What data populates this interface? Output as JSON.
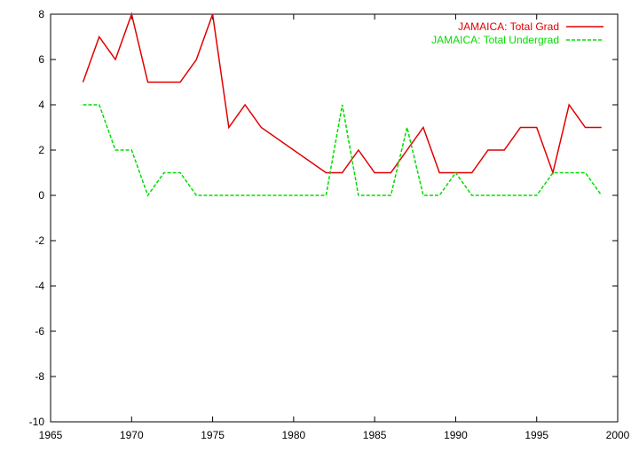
{
  "chart_data": {
    "type": "line",
    "title": "",
    "xlabel": "",
    "ylabel": "",
    "xlim": [
      1965,
      2000
    ],
    "ylim": [
      -10,
      8
    ],
    "x_ticks": [
      1965,
      1970,
      1975,
      1980,
      1985,
      1990,
      1995,
      2000
    ],
    "y_ticks": [
      -10,
      -8,
      -6,
      -4,
      -2,
      0,
      2,
      4,
      6,
      8
    ],
    "grid": false,
    "legend_position": "top-right",
    "series": [
      {
        "name": "JAMAICA: Total Grad",
        "color": "#e00000",
        "dash": "solid",
        "points": [
          [
            1967,
            5
          ],
          [
            1968,
            7
          ],
          [
            1969,
            6
          ],
          [
            1970,
            8
          ],
          [
            1971,
            5
          ],
          [
            1972,
            5
          ],
          [
            1973,
            5
          ],
          [
            1974,
            6
          ],
          [
            1975,
            8
          ],
          [
            1976,
            3
          ],
          [
            1977,
            4
          ],
          [
            1978,
            3
          ],
          [
            1982,
            1
          ],
          [
            1983,
            1
          ],
          [
            1984,
            2
          ],
          [
            1985,
            1
          ],
          [
            1986,
            1
          ],
          [
            1987,
            2
          ],
          [
            1988,
            3
          ],
          [
            1989,
            1
          ],
          [
            1990,
            1
          ],
          [
            1991,
            1
          ],
          [
            1992,
            2
          ],
          [
            1993,
            2
          ],
          [
            1994,
            3
          ],
          [
            1995,
            3
          ],
          [
            1996,
            1
          ],
          [
            1997,
            4
          ],
          [
            1998,
            3
          ],
          [
            1999,
            3
          ]
        ]
      },
      {
        "name": "JAMAICA: Total Undergrad",
        "color": "#00dd00",
        "dash": "dashed",
        "points": [
          [
            1967,
            4
          ],
          [
            1968,
            4
          ],
          [
            1969,
            2
          ],
          [
            1970,
            2
          ],
          [
            1971,
            0
          ],
          [
            1972,
            1
          ],
          [
            1973,
            1
          ],
          [
            1974,
            0
          ],
          [
            1982,
            0
          ],
          [
            1983,
            4
          ],
          [
            1984,
            0
          ],
          [
            1985,
            0
          ],
          [
            1986,
            0
          ],
          [
            1987,
            3
          ],
          [
            1988,
            0
          ],
          [
            1989,
            0
          ],
          [
            1990,
            1
          ],
          [
            1991,
            0
          ],
          [
            1995,
            0
          ],
          [
            1996,
            1
          ],
          [
            1997,
            1
          ],
          [
            1998,
            1
          ],
          [
            1999,
            0
          ]
        ]
      }
    ]
  }
}
